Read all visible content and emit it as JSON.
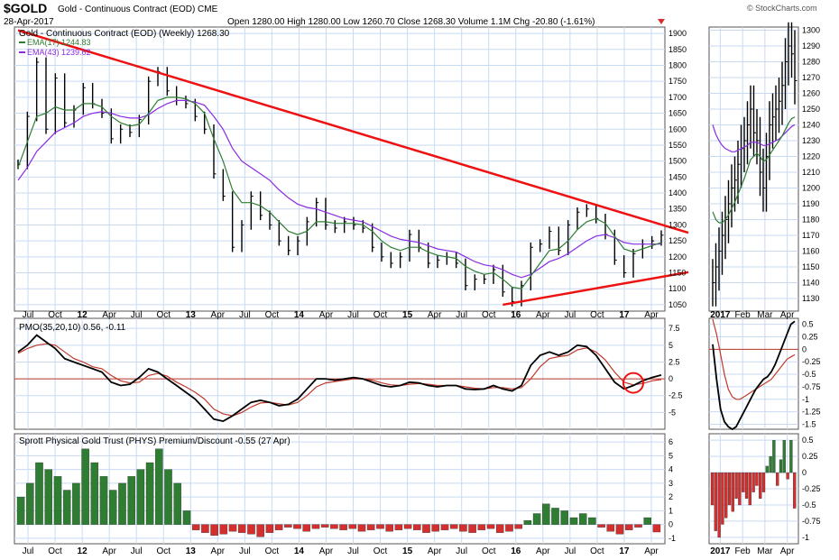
{
  "header": {
    "symbol": "$GOLD",
    "name": "Gold - Continuous Contract (EOD) CME",
    "brand": "© StockCharts.com",
    "date": "28-Apr-2017",
    "quote": "Open 1280.00  High 1280.00  Low 1260.70  Close 1268.30  Volume 1.1M  Chg -20.80 (-1.61%)",
    "change_direction": "down"
  },
  "colors": {
    "price_bars": "#000000",
    "ema17": "#2e7d32",
    "ema43": "#8a2be2",
    "trendline": "#ee1111",
    "pmo": "#000000",
    "pmo_signal": "#c0392b",
    "premium_positive": "#2e7d32",
    "premium_negative": "#d32f2f",
    "grid": "#c8daf2",
    "panel_border": "#555555"
  },
  "chart_data": [
    {
      "type": "line",
      "panel": "main-weekly",
      "title": "Gold - Continuous Contract (EOD) (Weekly) 1268.30",
      "legend": [
        "EMA(17) 1244.83",
        "EMA(43) 1239.62"
      ],
      "x_ticks": [
        "Jul",
        "Oct",
        "12",
        "Apr",
        "Jul",
        "Oct",
        "13",
        "Apr",
        "Jul",
        "Oct",
        "14",
        "Apr",
        "Jul",
        "Oct",
        "15",
        "Apr",
        "Jul",
        "Oct",
        "16",
        "Apr",
        "Jul",
        "Oct",
        "17",
        "Apr"
      ],
      "y_ticks": [
        1050,
        1100,
        1150,
        1200,
        1250,
        1300,
        1350,
        1400,
        1450,
        1500,
        1550,
        1600,
        1650,
        1700,
        1750,
        1800,
        1850,
        1900
      ],
      "ylim": [
        1030,
        1920
      ],
      "x": [
        "2011-07",
        "2011-08",
        "2011-09",
        "2011-10",
        "2011-11",
        "2011-12",
        "2012-01",
        "2012-02",
        "2012-03",
        "2012-04",
        "2012-05",
        "2012-06",
        "2012-07",
        "2012-08",
        "2012-09",
        "2012-10",
        "2012-11",
        "2012-12",
        "2013-01",
        "2013-02",
        "2013-03",
        "2013-04",
        "2013-05",
        "2013-06",
        "2013-07",
        "2013-08",
        "2013-09",
        "2013-10",
        "2013-11",
        "2013-12",
        "2014-01",
        "2014-02",
        "2014-03",
        "2014-04",
        "2014-05",
        "2014-06",
        "2014-07",
        "2014-08",
        "2014-09",
        "2014-10",
        "2014-11",
        "2014-12",
        "2015-01",
        "2015-02",
        "2015-03",
        "2015-04",
        "2015-05",
        "2015-06",
        "2015-07",
        "2015-08",
        "2015-09",
        "2015-10",
        "2015-11",
        "2015-12",
        "2016-01",
        "2016-02",
        "2016-03",
        "2016-04",
        "2016-05",
        "2016-06",
        "2016-07",
        "2016-08",
        "2016-09",
        "2016-10",
        "2016-11",
        "2016-12",
        "2017-01",
        "2017-02",
        "2017-03",
        "2017-04"
      ],
      "series": [
        {
          "name": "",
          "kind": "price",
          "values": [
            1490,
            1640,
            1810,
            1600,
            1760,
            1620,
            1660,
            1730,
            1680,
            1650,
            1570,
            1600,
            1590,
            1630,
            1750,
            1780,
            1720,
            1690,
            1680,
            1640,
            1600,
            1460,
            1390,
            1230,
            1300,
            1390,
            1330,
            1300,
            1250,
            1220,
            1250,
            1310,
            1370,
            1300,
            1290,
            1310,
            1300,
            1290,
            1230,
            1200,
            1180,
            1200,
            1270,
            1230,
            1180,
            1190,
            1200,
            1180,
            1110,
            1130,
            1130,
            1160,
            1090,
            1060,
            1110,
            1230,
            1240,
            1280,
            1220,
            1300,
            1340,
            1350,
            1320,
            1270,
            1190,
            1150,
            1210,
            1240,
            1250,
            1268
          ]
        },
        {
          "name": "EMA(17)",
          "kind": "ema",
          "values": [
            1480,
            1560,
            1640,
            1650,
            1670,
            1660,
            1660,
            1680,
            1680,
            1670,
            1640,
            1620,
            1610,
            1615,
            1650,
            1690,
            1700,
            1700,
            1695,
            1680,
            1650,
            1570,
            1500,
            1410,
            1370,
            1370,
            1360,
            1340,
            1310,
            1280,
            1270,
            1280,
            1310,
            1310,
            1305,
            1305,
            1305,
            1300,
            1280,
            1250,
            1230,
            1220,
            1230,
            1230,
            1215,
            1205,
            1200,
            1195,
            1170,
            1155,
            1145,
            1150,
            1130,
            1105,
            1100,
            1140,
            1180,
            1220,
            1225,
            1250,
            1285,
            1310,
            1320,
            1305,
            1265,
            1225,
            1215,
            1225,
            1235,
            1245
          ]
        },
        {
          "name": "EMA(43)",
          "kind": "ema",
          "values": [
            1440,
            1480,
            1530,
            1560,
            1590,
            1605,
            1620,
            1640,
            1650,
            1655,
            1650,
            1640,
            1635,
            1635,
            1645,
            1665,
            1680,
            1690,
            1690,
            1685,
            1675,
            1640,
            1600,
            1540,
            1500,
            1480,
            1460,
            1440,
            1410,
            1385,
            1365,
            1355,
            1350,
            1340,
            1330,
            1320,
            1315,
            1310,
            1295,
            1280,
            1265,
            1255,
            1250,
            1245,
            1235,
            1225,
            1220,
            1215,
            1200,
            1185,
            1175,
            1170,
            1160,
            1145,
            1135,
            1145,
            1165,
            1185,
            1195,
            1210,
            1230,
            1250,
            1265,
            1270,
            1260,
            1245,
            1240,
            1240,
            1240,
            1240
          ]
        }
      ],
      "trendlines": [
        {
          "from": [
            "2011-07",
            1910
          ],
          "to": [
            "2017-04",
            1288
          ]
        },
        {
          "from": [
            "2015-11",
            1050
          ],
          "to": [
            "2017-04",
            1150
          ]
        }
      ]
    },
    {
      "type": "line",
      "panel": "main-daily",
      "x_ticks": [
        "2017",
        "Feb",
        "Mar",
        "Apr"
      ],
      "y_ticks": [
        1130,
        1140,
        1150,
        1160,
        1170,
        1180,
        1190,
        1200,
        1210,
        1220,
        1230,
        1240,
        1250,
        1260,
        1270,
        1280,
        1290,
        1300
      ],
      "ylim": [
        1122,
        1302
      ],
      "series": [
        {
          "name": "",
          "kind": "price",
          "values": [
            1140,
            1150,
            1160,
            1170,
            1180,
            1190,
            1200,
            1205,
            1215,
            1225,
            1230,
            1240,
            1250,
            1235,
            1230,
            1210,
            1200,
            1220,
            1240,
            1245,
            1250,
            1255,
            1265,
            1280,
            1290,
            1285,
            1268
          ]
        },
        {
          "name": "EMA(17)",
          "kind": "ema",
          "values": [
            1185,
            1180,
            1178,
            1178,
            1180,
            1183,
            1187,
            1191,
            1196,
            1201,
            1206,
            1212,
            1218,
            1220,
            1222,
            1220,
            1217,
            1218,
            1221,
            1224,
            1227,
            1230,
            1233,
            1237,
            1241,
            1244,
            1245
          ]
        },
        {
          "name": "EMA(43)",
          "kind": "ema",
          "values": [
            1240,
            1234,
            1230,
            1227,
            1225,
            1224,
            1223,
            1223,
            1224,
            1225,
            1226,
            1227,
            1229,
            1229,
            1229,
            1228,
            1227,
            1227,
            1228,
            1229,
            1230,
            1231,
            1233,
            1235,
            1237,
            1239,
            1240
          ]
        }
      ]
    },
    {
      "type": "line",
      "panel": "pmo-weekly",
      "title": "PMO(35,20,10) 0.56, -0.11",
      "y_ticks": [
        7.5,
        5.0,
        2.5,
        0.0,
        -2.5,
        -5.0
      ],
      "ylim": [
        -7.5,
        9.0
      ],
      "series": [
        {
          "name": "PMO",
          "values": [
            4.0,
            5.0,
            6.5,
            5.5,
            4.5,
            3.0,
            2.5,
            2.0,
            1.5,
            1.0,
            -0.5,
            -1.0,
            -0.8,
            0.2,
            1.5,
            1.0,
            0.0,
            -1.0,
            -2.0,
            -3.0,
            -4.5,
            -6.0,
            -6.3,
            -5.5,
            -4.5,
            -3.5,
            -3.2,
            -3.5,
            -4.0,
            -3.8,
            -3.0,
            -1.5,
            0.0,
            0.0,
            -0.2,
            0.0,
            0.2,
            0.0,
            -0.5,
            -1.0,
            -1.2,
            -1.0,
            -0.5,
            -0.6,
            -1.0,
            -1.2,
            -1.0,
            -1.0,
            -1.5,
            -1.6,
            -1.5,
            -1.0,
            -1.5,
            -1.8,
            -1.0,
            2.0,
            3.5,
            4.0,
            3.5,
            4.0,
            5.0,
            4.8,
            3.5,
            1.5,
            -0.5,
            -1.5,
            -1.0,
            -0.3,
            0.2,
            0.56
          ]
        },
        {
          "name": "Signal",
          "values": [
            3.8,
            4.5,
            5.0,
            5.2,
            5.0,
            4.0,
            3.0,
            2.5,
            1.8,
            1.5,
            0.5,
            -0.3,
            -0.6,
            -0.5,
            0.5,
            0.8,
            0.4,
            -0.5,
            -1.2,
            -2.0,
            -3.0,
            -4.5,
            -5.2,
            -5.5,
            -5.0,
            -4.2,
            -3.6,
            -3.5,
            -3.7,
            -3.9,
            -3.5,
            -2.5,
            -1.2,
            -0.6,
            -0.4,
            -0.2,
            0.0,
            0.0,
            -0.2,
            -0.6,
            -0.9,
            -1.0,
            -0.8,
            -0.7,
            -0.8,
            -1.0,
            -1.0,
            -1.0,
            -1.2,
            -1.4,
            -1.5,
            -1.3,
            -1.3,
            -1.5,
            -1.3,
            0.0,
            1.8,
            3.0,
            3.3,
            3.5,
            4.3,
            4.6,
            4.0,
            2.8,
            1.0,
            -0.5,
            -0.9,
            -0.7,
            -0.3,
            -0.11
          ]
        }
      ]
    },
    {
      "type": "line",
      "panel": "pmo-daily",
      "y_ticks": [
        0.5,
        0.25,
        0.0,
        -0.25,
        -0.5,
        -0.75,
        -1.0,
        -1.25,
        -1.5
      ],
      "ylim": [
        -1.6,
        0.62
      ],
      "series": [
        {
          "name": "PMO",
          "values": [
            0.1,
            -0.6,
            -1.2,
            -1.45,
            -1.55,
            -1.6,
            -1.55,
            -1.4,
            -1.25,
            -1.1,
            -0.95,
            -0.8,
            -0.7,
            -0.6,
            -0.55,
            -0.45,
            -0.3,
            -0.1,
            0.1,
            0.3,
            0.5,
            0.56
          ]
        },
        {
          "name": "Signal",
          "values": [
            0.6,
            0.3,
            -0.1,
            -0.5,
            -0.8,
            -0.95,
            -1.0,
            -1.0,
            -0.95,
            -0.9,
            -0.85,
            -0.8,
            -0.75,
            -0.7,
            -0.65,
            -0.6,
            -0.5,
            -0.4,
            -0.3,
            -0.2,
            -0.15,
            -0.11
          ]
        }
      ]
    },
    {
      "type": "bar",
      "panel": "premium-weekly",
      "title": "Sprott Physical Gold Trust (PHYS) Premium/Discount -0.55 (27 Apr)",
      "y_ticks": [
        6,
        5,
        4,
        3,
        2,
        1,
        0,
        -1
      ],
      "ylim": [
        -1.4,
        6.6
      ],
      "values": [
        2.0,
        3.0,
        4.5,
        4.0,
        3.5,
        2.5,
        3.0,
        5.5,
        4.5,
        3.5,
        2.5,
        3.0,
        3.5,
        4.0,
        4.5,
        5.5,
        4.0,
        3.0,
        1.0,
        -0.4,
        -0.6,
        -0.8,
        -0.7,
        -0.5,
        -0.6,
        -0.7,
        -0.9,
        -0.6,
        -0.4,
        -0.2,
        -0.3,
        -0.5,
        -0.3,
        -0.2,
        -0.3,
        -0.4,
        -0.3,
        -0.5,
        -0.4,
        -0.3,
        -0.5,
        -0.4,
        -0.3,
        -0.4,
        -0.6,
        -0.5,
        -0.4,
        -0.3,
        -0.5,
        -0.6,
        -0.4,
        -0.3,
        -0.6,
        -0.5,
        -0.3,
        0.3,
        0.8,
        1.5,
        1.2,
        1.0,
        0.5,
        0.8,
        0.5,
        -0.2,
        -0.5,
        -0.7,
        -0.4,
        -0.2,
        0.5,
        -0.55
      ]
    },
    {
      "type": "bar",
      "panel": "premium-daily",
      "x_ticks": [
        "2017",
        "Feb",
        "Mar",
        "Apr"
      ],
      "y_ticks": [
        0.5,
        0.25,
        0.0,
        -0.25,
        -0.5,
        -0.75,
        -1.0
      ],
      "ylim": [
        -1.1,
        0.6
      ],
      "values": [
        -0.5,
        -0.9,
        -1.0,
        -0.8,
        -0.7,
        -0.5,
        -0.6,
        -0.4,
        -0.5,
        -0.3,
        -0.4,
        -0.5,
        -0.3,
        -0.2,
        -0.4,
        -0.3,
        0.1,
        0.25,
        0.5,
        -0.2,
        0.2,
        0.5,
        -0.1,
        0.5,
        -0.55
      ]
    }
  ]
}
